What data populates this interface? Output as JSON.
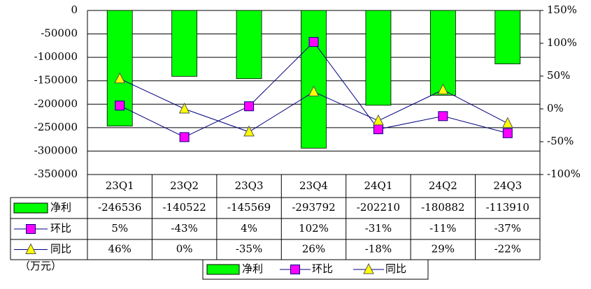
{
  "chart_data": {
    "type": "bar-line",
    "unit_label": "（万元）",
    "categories": [
      "23Q1",
      "23Q2",
      "23Q3",
      "23Q4",
      "24Q1",
      "24Q2",
      "24Q3"
    ],
    "series": [
      {
        "name": "净利",
        "type": "bar",
        "color": "#00ff00",
        "values": [
          -246536,
          -140522,
          -145569,
          -293792,
          -202210,
          -180882,
          -113910
        ]
      },
      {
        "name": "环比",
        "type": "line",
        "axis": "y2",
        "color": "#ff00ff",
        "line_color": "#000080",
        "marker": "square",
        "values": [
          5,
          -43,
          4,
          102,
          -31,
          -11,
          -37
        ],
        "value_labels": [
          "5%",
          "-43%",
          "4%",
          "102%",
          "-31%",
          "-11%",
          "-37%"
        ]
      },
      {
        "name": "同比",
        "type": "line",
        "axis": "y2",
        "color": "#ffff00",
        "line_color": "#000080",
        "marker": "triangle",
        "values": [
          46,
          0,
          -35,
          26,
          -18,
          29,
          -22
        ],
        "value_labels": [
          "46%",
          "0%",
          "-35%",
          "26%",
          "-18%",
          "29%",
          "-22%"
        ]
      }
    ],
    "ylim": [
      -350000,
      0
    ],
    "yticks": [
      0,
      -50000,
      -100000,
      -150000,
      -200000,
      -250000,
      -300000,
      -350000
    ],
    "y2lim": [
      -100,
      150
    ],
    "y2ticks": [
      {
        "value": 150,
        "label": "150%"
      },
      {
        "value": 100,
        "label": "100%"
      },
      {
        "value": 50,
        "label": "50%"
      },
      {
        "value": 0,
        "label": "0%"
      },
      {
        "value": -50,
        "label": "-50%"
      },
      {
        "value": -100,
        "label": "-100%"
      }
    ],
    "grid": true,
    "legend": "bottom"
  }
}
